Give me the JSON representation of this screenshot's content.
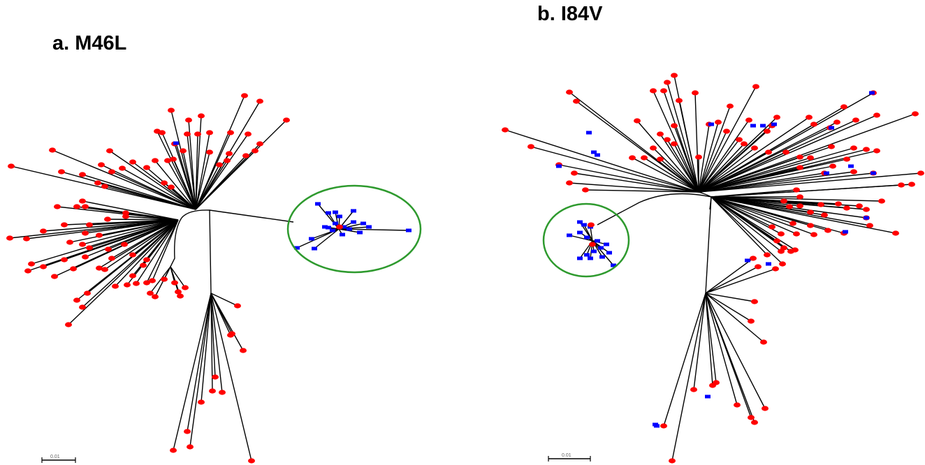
{
  "panels": [
    {
      "id": "a",
      "title": "a. M46L"
    },
    {
      "id": "b",
      "title": "b. I84V"
    }
  ],
  "scale_bar_label": "0.01",
  "colors": {
    "red_taxa": "#ff0000",
    "blue_taxa": "#0000ff",
    "cluster_circle": "#2e9a2e",
    "branch": "#000000"
  }
}
